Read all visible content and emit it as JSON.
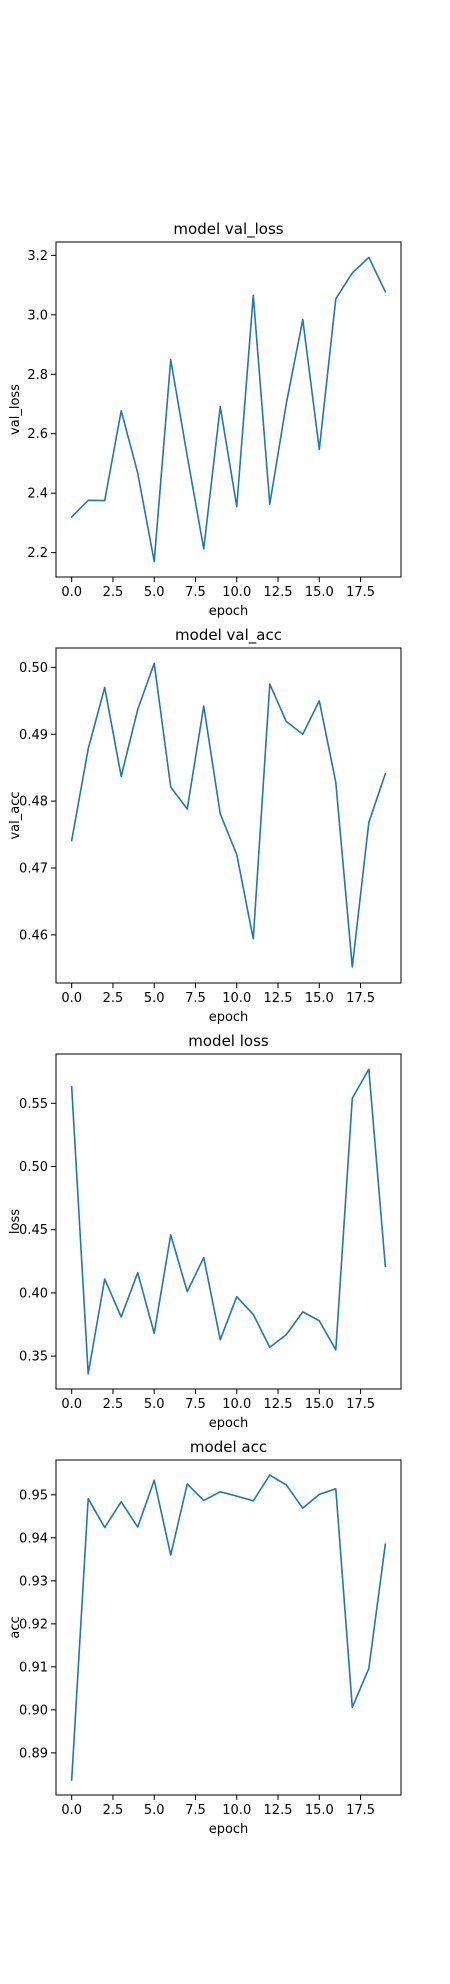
{
  "chart_data": [
    {
      "type": "line",
      "title": "model val_loss",
      "xlabel": "epoch",
      "ylabel": "val_loss",
      "x": [
        0,
        1,
        2,
        3,
        4,
        5,
        6,
        7,
        8,
        9,
        10,
        11,
        12,
        13,
        14,
        15,
        16,
        17,
        18,
        19
      ],
      "series": [
        {
          "values": [
            2.32,
            2.376,
            2.375,
            2.677,
            2.468,
            2.17,
            2.849,
            2.525,
            2.213,
            2.691,
            2.355,
            3.065,
            2.363,
            2.701,
            2.984,
            2.547,
            3.054,
            3.141,
            3.193,
            3.078
          ]
        }
      ],
      "xlim": [
        -0.95,
        19.95
      ],
      "ylim": [
        2.118,
        3.245
      ],
      "xticks": [
        0.0,
        2.5,
        5.0,
        7.5,
        10.0,
        12.5,
        15.0,
        17.5
      ],
      "xtick_labels": [
        "0.0",
        "2.5",
        "5.0",
        "7.5",
        "10.0",
        "12.5",
        "15.0",
        "17.5"
      ],
      "yticks": [
        2.2,
        2.4,
        2.6,
        2.8,
        3.0,
        3.2
      ],
      "ytick_labels": [
        "2.2",
        "2.4",
        "2.6",
        "2.8",
        "3.0",
        "3.2"
      ],
      "grid": false,
      "color": "#1f77b4"
    },
    {
      "type": "line",
      "title": "model val_acc",
      "xlabel": "epoch",
      "ylabel": "val_acc",
      "x": [
        0,
        1,
        2,
        3,
        4,
        5,
        6,
        7,
        8,
        9,
        10,
        11,
        12,
        13,
        14,
        15,
        16,
        17,
        18,
        19
      ],
      "series": [
        {
          "values": [
            0.4741,
            0.4878,
            0.497,
            0.4837,
            0.4937,
            0.5006,
            0.4821,
            0.4788,
            0.4942,
            0.4781,
            0.472,
            0.4594,
            0.4975,
            0.4919,
            0.49,
            0.495,
            0.4828,
            0.4552,
            0.4768,
            0.4841
          ]
        }
      ],
      "xlim": [
        -0.95,
        19.95
      ],
      "ylim": [
        0.4528,
        0.5029
      ],
      "xticks": [
        0.0,
        2.5,
        5.0,
        7.5,
        10.0,
        12.5,
        15.0,
        17.5
      ],
      "xtick_labels": [
        "0.0",
        "2.5",
        "5.0",
        "7.5",
        "10.0",
        "12.5",
        "15.0",
        "17.5"
      ],
      "yticks": [
        0.46,
        0.47,
        0.48,
        0.49,
        0.5
      ],
      "ytick_labels": [
        "0.46",
        "0.47",
        "0.48",
        "0.49",
        "0.50"
      ],
      "grid": false,
      "color": "#1f77b4"
    },
    {
      "type": "line",
      "title": "model loss",
      "xlabel": "epoch",
      "ylabel": "loss",
      "x": [
        0,
        1,
        2,
        3,
        4,
        5,
        6,
        7,
        8,
        9,
        10,
        11,
        12,
        13,
        14,
        15,
        16,
        17,
        18,
        19
      ],
      "series": [
        {
          "values": [
            0.563,
            0.336,
            0.411,
            0.381,
            0.416,
            0.368,
            0.446,
            0.401,
            0.428,
            0.363,
            0.397,
            0.383,
            0.357,
            0.367,
            0.385,
            0.378,
            0.355,
            0.554,
            0.577,
            0.421
          ]
        }
      ],
      "xlim": [
        -0.95,
        19.95
      ],
      "ylim": [
        0.324,
        0.589
      ],
      "xticks": [
        0.0,
        2.5,
        5.0,
        7.5,
        10.0,
        12.5,
        15.0,
        17.5
      ],
      "xtick_labels": [
        "0.0",
        "2.5",
        "5.0",
        "7.5",
        "10.0",
        "12.5",
        "15.0",
        "17.5"
      ],
      "yticks": [
        0.35,
        0.4,
        0.45,
        0.5,
        0.55
      ],
      "ytick_labels": [
        "0.35",
        "0.40",
        "0.45",
        "0.50",
        "0.55"
      ],
      "grid": false,
      "color": "#1f77b4"
    },
    {
      "type": "line",
      "title": "model acc",
      "xlabel": "epoch",
      "ylabel": "acc",
      "x": [
        0,
        1,
        2,
        3,
        4,
        5,
        6,
        7,
        8,
        9,
        10,
        11,
        12,
        13,
        14,
        15,
        16,
        17,
        18,
        19
      ],
      "series": [
        {
          "values": [
            0.8837,
            0.9491,
            0.9424,
            0.9484,
            0.9425,
            0.9534,
            0.936,
            0.9525,
            0.9487,
            0.9507,
            0.9497,
            0.9486,
            0.9546,
            0.9523,
            0.9469,
            0.9501,
            0.9514,
            0.9006,
            0.9096,
            0.9385
          ]
        }
      ],
      "xlim": [
        -0.95,
        19.95
      ],
      "ylim": [
        0.8802,
        0.9581
      ],
      "xticks": [
        0.0,
        2.5,
        5.0,
        7.5,
        10.0,
        12.5,
        15.0,
        17.5
      ],
      "xtick_labels": [
        "0.0",
        "2.5",
        "5.0",
        "7.5",
        "10.0",
        "12.5",
        "15.0",
        "17.5"
      ],
      "yticks": [
        0.89,
        0.9,
        0.91,
        0.92,
        0.93,
        0.94,
        0.95
      ],
      "ytick_labels": [
        "0.89",
        "0.90",
        "0.91",
        "0.92",
        "0.93",
        "0.94",
        "0.95"
      ],
      "grid": false,
      "color": "#1f77b4"
    }
  ]
}
